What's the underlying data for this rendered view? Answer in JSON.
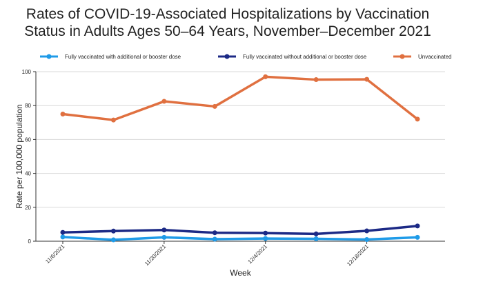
{
  "chart_data": {
    "type": "line",
    "title": "Rates of COVID-19-Associated Hospitalizations by Vaccination Status in Adults Ages 50–64 Years, November–December 2021",
    "title_lines": [
      "Rates of COVID-19-Associated Hospitalizations by Vaccination",
      "Status in Adults Ages 50–64 Years, November–December 2021"
    ],
    "xlabel": "Week",
    "ylabel": "Rate per 100,000 population",
    "ylim": [
      0,
      100
    ],
    "yticks": [
      0,
      20,
      40,
      60,
      80,
      100
    ],
    "grid": true,
    "legend_position": "top",
    "x": [
      0,
      1,
      2,
      3,
      4,
      5,
      6,
      7
    ],
    "xtick_positions": [
      0,
      2,
      4,
      6
    ],
    "xtick_labels": [
      "11/6/2021",
      "11/20/2021",
      "12/4/2021",
      "12/18/2021"
    ],
    "series": [
      {
        "name": "Fully vaccinated with additional or booster dose",
        "color": "#1f9be8",
        "values": [
          2.5,
          0.8,
          2.3,
          1.2,
          1.6,
          1.4,
          1.0,
          2.3
        ]
      },
      {
        "name": "Fully vaccinated without additional or booster dose",
        "color": "#1c2a86",
        "values": [
          5.2,
          6.0,
          6.6,
          5.0,
          4.8,
          4.3,
          6.1,
          9.0
        ]
      },
      {
        "name": "Unvaccinated",
        "color": "#e07040",
        "values": [
          75.0,
          71.5,
          82.5,
          79.5,
          97.0,
          95.3,
          95.5,
          72.0
        ]
      }
    ]
  }
}
